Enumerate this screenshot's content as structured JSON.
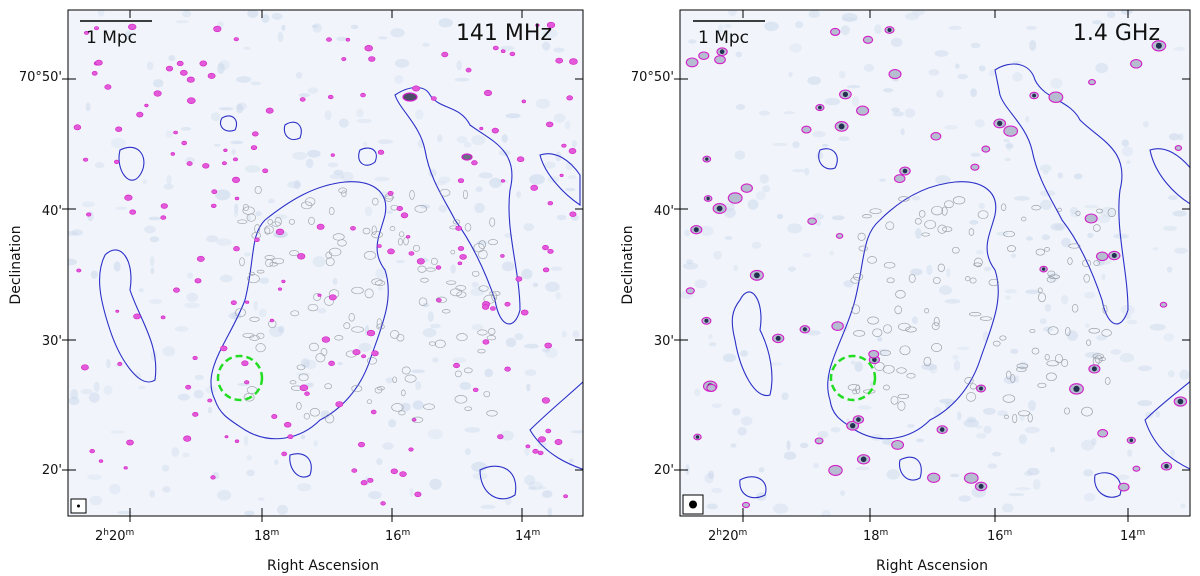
{
  "panels": [
    {
      "frequency": "141 MHz",
      "scale_bar": "1 Mpc",
      "xlabel": "Right Ascension",
      "ylabel": "Declination",
      "ra_ticks": [
        {
          "main": "2",
          "sup": "h",
          "main2": "20",
          "sup2": "m"
        },
        {
          "main": "18",
          "sup": "m"
        },
        {
          "main": "16",
          "sup": "m"
        },
        {
          "main": "14",
          "sup": "m"
        }
      ],
      "dec_ticks": [
        "70°50'",
        "40'",
        "30'",
        "20'"
      ]
    },
    {
      "frequency": "1.4 GHz",
      "scale_bar": "1 Mpc",
      "xlabel": "Right Ascension",
      "ylabel": "Declination",
      "ra_ticks": [
        {
          "main": "2",
          "sup": "h",
          "main2": "20",
          "sup2": "m"
        },
        {
          "main": "18",
          "sup": "m"
        },
        {
          "main": "16",
          "sup": "m"
        },
        {
          "main": "14",
          "sup": "m"
        }
      ],
      "dec_ticks": [
        "70°50'",
        "40'",
        "30'",
        "20'"
      ]
    }
  ],
  "colors": {
    "background": "#f1f5fb",
    "contour_low": "#2b2fc8",
    "contour_high": "#d21fc8",
    "highlight_circle": "#22dd22",
    "source_gray": "#8a8f98"
  }
}
